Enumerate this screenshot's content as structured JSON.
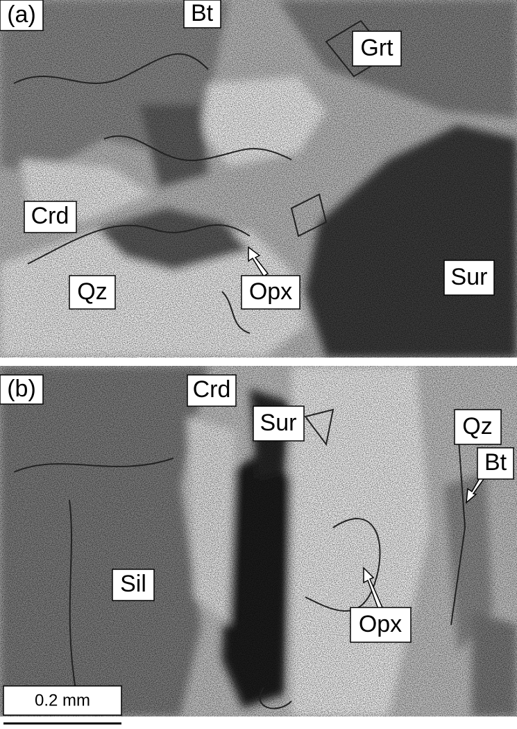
{
  "panels": [
    {
      "label": "(a)",
      "minerals": [
        "Bt",
        "Grt",
        "Crd",
        "Qz",
        "Opx",
        "Sur"
      ]
    },
    {
      "label": "(b)",
      "minerals": [
        "Crd",
        "Sur",
        "Qz",
        "Bt",
        "Sil",
        "Opx"
      ]
    }
  ],
  "scale_bar": "0.2 mm"
}
